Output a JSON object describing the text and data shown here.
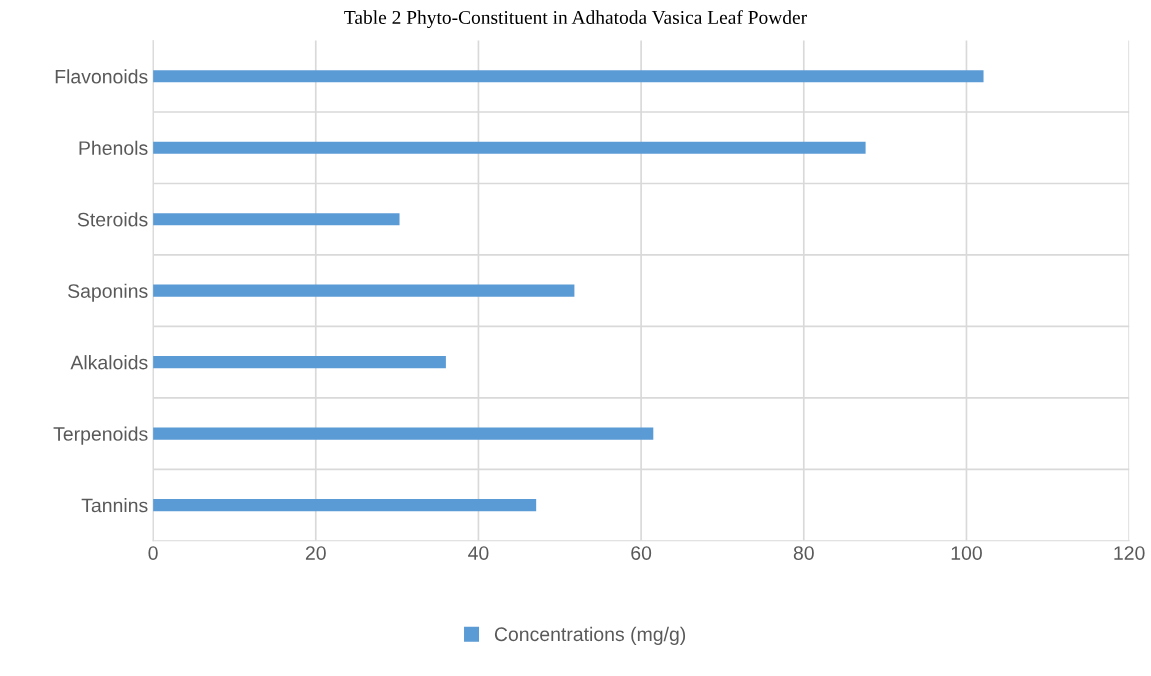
{
  "chart_data": {
    "type": "bar",
    "orientation": "horizontal",
    "title": "Table 2 Phyto-Constituent in Adhatoda Vasica Leaf Powder",
    "categories": [
      "Flavonoids",
      "Phenols",
      "Steroids",
      "Saponins",
      "Alkaloids",
      "Terpenoids",
      "Tannins"
    ],
    "series": [
      {
        "name": "Concentrations (mg/g)",
        "color": "#5b9bd5",
        "values": [
          102.1,
          87.6,
          30.3,
          51.8,
          36.0,
          61.5,
          47.1
        ]
      }
    ],
    "xlim": [
      0,
      120
    ],
    "xticks": [
      0,
      20,
      40,
      60,
      80,
      100,
      120
    ],
    "grid": true,
    "legend": "bottom"
  }
}
